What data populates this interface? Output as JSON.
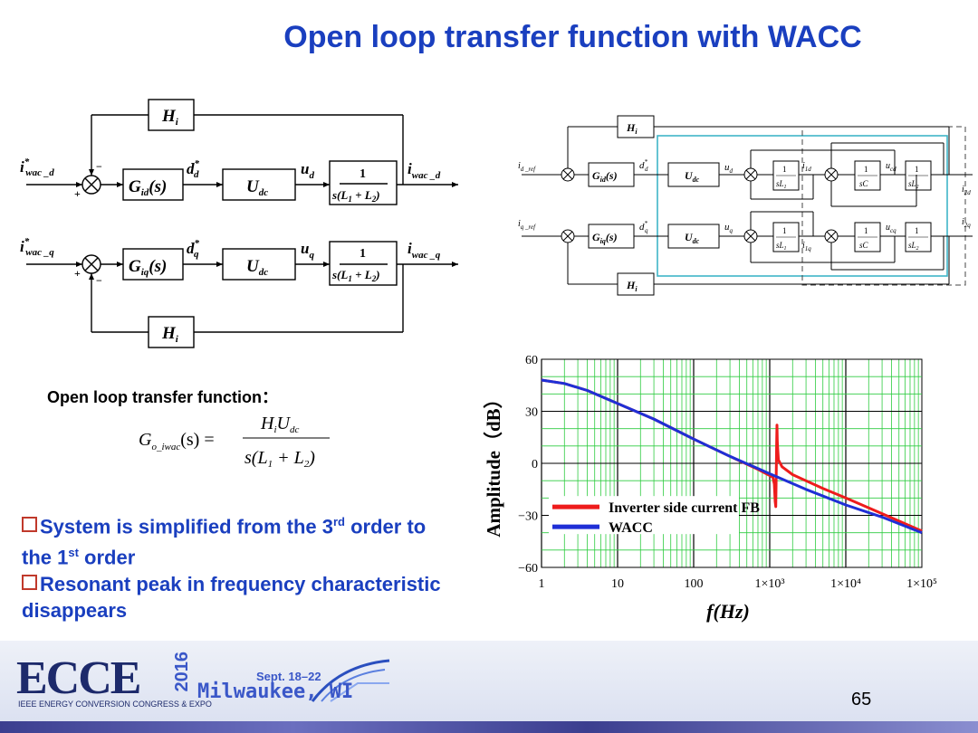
{
  "slide": {
    "title": "Open loop transfer function with WACC",
    "page_number": "65"
  },
  "left_diagram": {
    "blocks": {
      "Hi": "H",
      "Hi_sub": "i",
      "Gid": "G",
      "Gid_sub": "id",
      "Giq": "G",
      "Giq_sub": "iq",
      "Udc": "U",
      "Udc_sub": "dc",
      "plant_num": "1",
      "plant_den": "s(L₁ + L₂)"
    },
    "signals": {
      "in_d": "i*wac_d",
      "in_q": "i*wac_q",
      "dd": "d*d",
      "dq": "d*q",
      "ud": "ud",
      "uq": "uq",
      "out_d": "iwac_d",
      "out_q": "iwac_q"
    }
  },
  "right_diagram": {
    "labels": {
      "id_ref": "id_ref",
      "iq_ref": "iq_ref",
      "i2d": "i2d",
      "i2q": "i2q",
      "i1d": "i1d",
      "i1q": "i1q",
      "ucd": "ucd",
      "ucq": "ucq",
      "sL1": "sL₁",
      "sC": "sC",
      "sL2": "sL₂",
      "one": "1"
    }
  },
  "formula": {
    "label": "Open loop transfer function：",
    "lhs": "G",
    "lhs_sub": "o_iwac",
    "lhs_arg": "(s) =",
    "numerator": "HᵢU",
    "num_sub": "dc",
    "denominator": "s(L₁ + L₂)"
  },
  "bullets": [
    {
      "text_a": "System is simplified from the 3",
      "sup": "rd",
      "text_b": " order to the 1",
      "sup2": "st",
      "text_c": " order"
    },
    {
      "text_a": "Resonant peak in frequency characteristic disappears"
    }
  ],
  "footer": {
    "logo": "ECCE",
    "year": "2016",
    "subtitle": "IEEE ENERGY CONVERSION CONGRESS & EXPO",
    "dates": "Sept. 18–22",
    "city": "Milwaukee, WI"
  },
  "colors": {
    "title": "#1a3fbf",
    "red_series": "#ee1c1c",
    "blue_series": "#1f2fd6",
    "grid": "#2ecc40"
  },
  "chart_data": {
    "type": "line",
    "title": "",
    "xlabel": "f(Hz)",
    "ylabel": "Amplitude（dB）",
    "x_scale": "log",
    "xlim": [
      1,
      100000
    ],
    "ylim": [
      -60,
      60
    ],
    "x_ticks": [
      "1",
      "10",
      "100",
      "1×10³",
      "1×10⁴",
      "1×10⁵"
    ],
    "y_ticks": [
      "60",
      "30",
      "0",
      "−30",
      "−60"
    ],
    "grid": true,
    "legend_position": "bottom-left",
    "series": [
      {
        "name": "Inverter side current FB",
        "color": "#ee1c1c",
        "points": [
          [
            1,
            48
          ],
          [
            2,
            46
          ],
          [
            4,
            42
          ],
          [
            10,
            34.5
          ],
          [
            30,
            25.5
          ],
          [
            100,
            14
          ],
          [
            300,
            4
          ],
          [
            700,
            -3.5
          ],
          [
            1100,
            -8
          ],
          [
            1150,
            -12
          ],
          [
            1180,
            -22
          ],
          [
            1200,
            -25
          ],
          [
            1215,
            -10
          ],
          [
            1230,
            10
          ],
          [
            1245,
            22
          ],
          [
            1260,
            12
          ],
          [
            1300,
            2
          ],
          [
            1450,
            -2
          ],
          [
            2000,
            -6.5
          ],
          [
            5000,
            -14.5
          ],
          [
            10000,
            -20
          ],
          [
            30000,
            -29
          ],
          [
            100000,
            -39
          ]
        ]
      },
      {
        "name": "WACC",
        "color": "#1f2fd6",
        "points": [
          [
            1,
            48
          ],
          [
            2,
            46
          ],
          [
            4,
            42
          ],
          [
            10,
            34.5
          ],
          [
            30,
            25.5
          ],
          [
            100,
            14
          ],
          [
            300,
            4
          ],
          [
            700,
            -3
          ],
          [
            1000,
            -6
          ],
          [
            3000,
            -15
          ],
          [
            10000,
            -24
          ],
          [
            30000,
            -31
          ],
          [
            100000,
            -40
          ]
        ]
      }
    ]
  }
}
